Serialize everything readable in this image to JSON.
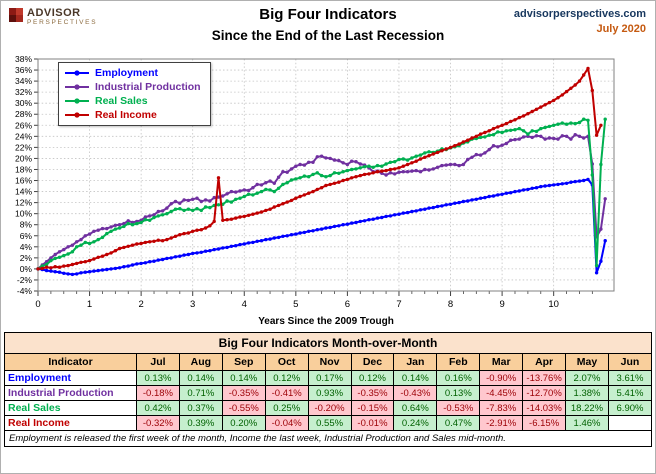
{
  "logo": {
    "line1": "ADVISOR",
    "line2": "PERSPECTIVES"
  },
  "masthead": {
    "site": "advisorperspectives.com",
    "date": "July 2020"
  },
  "title": "Big Four Indicators",
  "subtitle": "Since the End of the Last Recession",
  "chart_data": {
    "type": "line",
    "title": "Big Four Indicators Since the End of the Last Recession",
    "xlabel": "Years Since the 2009 Trough",
    "ylabel": "",
    "xlim": [
      0,
      11.17
    ],
    "ylim": [
      -4,
      38
    ],
    "y_tick_step": 2,
    "x_major_ticks": [
      0,
      1,
      2,
      3,
      4,
      5,
      6,
      7,
      8,
      9,
      10
    ],
    "x_minor_step": 0.25,
    "grid": "dotted",
    "legend_position": "top-left",
    "x_unit": "months_over_12",
    "series": [
      {
        "name": "Employment",
        "color": "#0000FF",
        "values": [
          0,
          -0.1,
          -0.3,
          -0.4,
          -0.5,
          -0.6,
          -0.8,
          -0.9,
          -1,
          -0.9,
          -0.7,
          -0.6,
          -0.5,
          -0.4,
          -0.3,
          -0.2,
          -0.1,
          0,
          0.1,
          0.2,
          0.4,
          0.5,
          0.7,
          0.9,
          1,
          1.1,
          1.3,
          1.4,
          1.6,
          1.7,
          1.9,
          2,
          2.2,
          2.3,
          2.5,
          2.6,
          2.8,
          2.9,
          3,
          3.2,
          3.3,
          3.5,
          3.6,
          3.8,
          3.9,
          4.1,
          4.2,
          4.4,
          4.5,
          4.7,
          4.8,
          5,
          5.1,
          5.3,
          5.4,
          5.6,
          5.7,
          5.9,
          6,
          6.2,
          6.3,
          6.5,
          6.6,
          6.8,
          6.9,
          7.1,
          7.2,
          7.4,
          7.5,
          7.7,
          7.8,
          8,
          8.1,
          8.3,
          8.4,
          8.6,
          8.7,
          8.9,
          9,
          9.2,
          9.3,
          9.5,
          9.6,
          9.8,
          9.9,
          10.1,
          10.2,
          10.4,
          10.5,
          10.7,
          10.8,
          11,
          11.1,
          11.3,
          11.4,
          11.6,
          11.7,
          11.9,
          12,
          12.2,
          12.3,
          12.5,
          12.6,
          12.8,
          12.9,
          13.1,
          13.2,
          13.4,
          13.5,
          13.7,
          13.8,
          14,
          14.1,
          14.3,
          14.4,
          14.6,
          14.7,
          14.9,
          15,
          15.1,
          15.2,
          15.3,
          15.4,
          15.5,
          15.7,
          15.8,
          15.9,
          16,
          16.2,
          15.2,
          -0.7,
          1.4,
          5.1
        ]
      },
      {
        "name": "Industrial Production",
        "color": "#7030A0",
        "values": [
          0,
          0.7,
          1.3,
          2,
          2.6,
          3.1,
          3.5,
          4,
          4.3,
          4.9,
          5.3,
          6,
          6.3,
          6.8,
          7,
          7.3,
          7.3,
          7.6,
          7.9,
          8,
          8.2,
          8.7,
          8.4,
          8.6,
          8.8,
          9.4,
          9.6,
          9.8,
          10.4,
          10.5,
          11,
          11.8,
          12.2,
          11.9,
          12.5,
          12.4,
          12.6,
          12.8,
          12.2,
          12.5,
          12.3,
          12.9,
          13,
          13.2,
          13.6,
          14,
          13.9,
          14.1,
          14.3,
          14.2,
          14.7,
          15.3,
          15.2,
          15.6,
          15.9,
          15.5,
          16.6,
          17.6,
          17.5,
          18.1,
          18.6,
          18.9,
          18.8,
          19.3,
          19.3,
          20.3,
          20.4,
          20.1,
          20,
          19.7,
          19.6,
          19.2,
          18.9,
          19.5,
          19.4,
          19,
          18.8,
          18.3,
          17.6,
          17.7,
          17.3,
          17,
          17.4,
          17.2,
          17.5,
          17.6,
          17.6,
          17.7,
          17.8,
          17.6,
          18,
          17.9,
          18.1,
          18.4,
          18.7,
          18.8,
          18.9,
          18.9,
          18.7,
          18.9,
          19.8,
          20.2,
          20.7,
          20.6,
          21,
          21.6,
          22.3,
          22.1,
          22.4,
          22.7,
          23.3,
          23.4,
          23.5,
          23.9,
          24,
          23.8,
          24.1,
          24,
          23.5,
          23.7,
          23.6,
          23.5,
          24.1,
          24,
          23.5,
          24.3,
          24,
          23.7,
          24,
          19,
          5.8,
          7.2,
          12.7
        ]
      },
      {
        "name": "Real Sales",
        "color": "#00B050",
        "values": [
          0,
          0.5,
          0.8,
          1.5,
          1.9,
          2.1,
          2.4,
          2.7,
          3.1,
          4,
          4.3,
          4.8,
          4.6,
          4.9,
          5.3,
          5.7,
          6.4,
          6.8,
          7.2,
          7.4,
          7.7,
          8.2,
          8,
          8.2,
          8.4,
          8.9,
          8.8,
          9.3,
          9.6,
          9.8,
          10,
          10.4,
          10.8,
          10.9,
          10.6,
          10.8,
          10.6,
          10.9,
          10.6,
          11.2,
          11.1,
          11.5,
          11.6,
          11.7,
          12.3,
          12.1,
          12.6,
          12.8,
          13.1,
          13.5,
          13.4,
          13.7,
          14,
          14.4,
          14.3,
          14,
          14.6,
          15.3,
          15.6,
          16.1,
          16.3,
          16.5,
          16.8,
          16.7,
          17.1,
          17.4,
          16.9,
          16.7,
          16.9,
          17.4,
          17.3,
          17.6,
          17.8,
          18,
          18.1,
          18.3,
          18.5,
          18.6,
          18.4,
          18.7,
          18.6,
          19,
          19.3,
          19.4,
          19.8,
          19.9,
          19.7,
          20.1,
          20.4,
          20.6,
          21,
          21.2,
          21.1,
          21.3,
          21.7,
          21.6,
          21.9,
          22.1,
          22.3,
          22.8,
          23,
          23.5,
          23.6,
          23.8,
          23.9,
          24.2,
          24.3,
          24.8,
          24.7,
          25,
          25.1,
          25.2,
          25.4,
          25,
          24.4,
          25,
          24.9,
          25.4,
          25.6,
          25.8,
          26,
          26.2,
          26.4,
          26.2,
          26.4,
          26.3,
          26.5,
          27.1,
          26.9,
          17,
          0.6,
          18.9,
          27.1
        ]
      },
      {
        "name": "Real Income",
        "color": "#C00000",
        "values": [
          0,
          0.1,
          0.3,
          0.2,
          0.4,
          0.3,
          0.5,
          0.6,
          0.8,
          1,
          1.2,
          1.3,
          1.5,
          1.8,
          2.1,
          2.3,
          2.6,
          2.9,
          3.3,
          3.7,
          3.9,
          4.1,
          4.3,
          4.5,
          4.6,
          4.8,
          4.9,
          5,
          5.2,
          5.1,
          5.3,
          5.6,
          5.9,
          6.2,
          6.4,
          6.5,
          6.8,
          7,
          7.1,
          7.4,
          7.8,
          8.6,
          16.5,
          8.8,
          8.9,
          9,
          9.2,
          9.4,
          9.5,
          9.7,
          9.9,
          10.1,
          10.3,
          10.6,
          10.8,
          11.2,
          11.5,
          11.8,
          12.1,
          12.4,
          12.8,
          13.1,
          13.4,
          13.7,
          14,
          14.4,
          14.7,
          15.1,
          15.3,
          15.5,
          15.7,
          16,
          16.2,
          16.5,
          16.7,
          16.9,
          17.1,
          17.2,
          17.4,
          17.6,
          17.7,
          17.8,
          18,
          18.1,
          18.3,
          18.6,
          18.9,
          19.2,
          19.5,
          19.9,
          20.2,
          20.5,
          20.8,
          21.1,
          21.4,
          21.7,
          22,
          22.3,
          22.6,
          23,
          23.3,
          23.7,
          24,
          24.4,
          24.7,
          25,
          25.4,
          25.7,
          26,
          26.3,
          26.7,
          27,
          27.4,
          27.7,
          28.1,
          28.5,
          28.9,
          29.3,
          29.7,
          30.1,
          30.5,
          31,
          31.5,
          32.1,
          32.7,
          33.3,
          34,
          35.1,
          36.3,
          32.3,
          24.2,
          26
        ]
      }
    ]
  },
  "table": {
    "title": "Big Four Indicators Month-over-Month",
    "indicator_header": "Indicator",
    "columns": [
      "Jul",
      "Aug",
      "Sep",
      "Oct",
      "Nov",
      "Dec",
      "Jan",
      "Feb",
      "Mar",
      "Apr",
      "May",
      "Jun"
    ],
    "rows": [
      {
        "label": "Employment",
        "color": "#0000FF",
        "cells": [
          "0.13%",
          "0.14%",
          "0.14%",
          "0.12%",
          "0.17%",
          "0.12%",
          "0.14%",
          "0.16%",
          "-0.90%",
          "-13.76%",
          "2.07%",
          "3.61%"
        ]
      },
      {
        "label": "Industrial Production",
        "color": "#7030A0",
        "cells": [
          "-0.18%",
          "0.71%",
          "-0.35%",
          "-0.41%",
          "0.93%",
          "-0.35%",
          "-0.43%",
          "0.13%",
          "-4.45%",
          "-12.70%",
          "1.38%",
          "5.41%"
        ]
      },
      {
        "label": "Real Sales",
        "color": "#00B050",
        "cells": [
          "0.42%",
          "0.37%",
          "-0.55%",
          "0.25%",
          "-0.20%",
          "-0.15%",
          "0.64%",
          "-0.53%",
          "-7.83%",
          "-14.03%",
          "18.22%",
          "6.90%"
        ]
      },
      {
        "label": "Real Income",
        "color": "#C00000",
        "cells": [
          "-0.32%",
          "0.39%",
          "0.20%",
          "-0.04%",
          "0.55%",
          "-0.01%",
          "0.24%",
          "0.47%",
          "-2.91%",
          "-6.15%",
          "1.46%",
          ""
        ]
      }
    ]
  },
  "footnote": "Employment is released the first week of the month, Income the last week, Industrial Production and Sales mid-month."
}
